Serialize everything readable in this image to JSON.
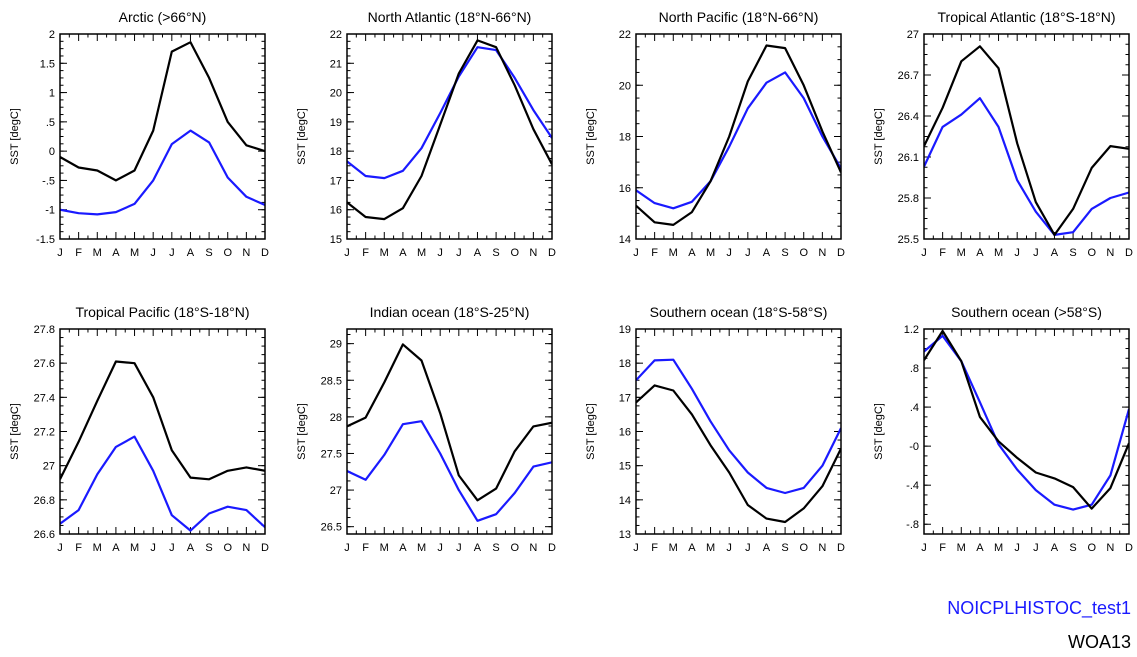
{
  "colors": {
    "model": "#1a1aff",
    "obs": "#000000"
  },
  "legend": {
    "model": "NOICPLHISTOC_test1",
    "obs": "WOA13"
  },
  "chart_data": [
    {
      "type": "line",
      "title": "Arctic (>66°N)",
      "ylabel": "SST [degC]",
      "x": [
        "J",
        "F",
        "M",
        "A",
        "M",
        "J",
        "J",
        "A",
        "S",
        "O",
        "N",
        "D"
      ],
      "ylim": [
        -1.5,
        2
      ],
      "yticks": [
        -1.5,
        -1,
        -0.5,
        0,
        0.5,
        1,
        1.5,
        2
      ],
      "yticklabels": [
        "-1.5",
        "-1",
        "-.5",
        "0",
        ".5",
        "1",
        "1.5",
        "2"
      ],
      "series": [
        {
          "name": "WOA13",
          "values": [
            -0.1,
            -0.28,
            -0.33,
            -0.5,
            -0.33,
            0.35,
            1.7,
            1.86,
            1.25,
            0.5,
            0.1,
            0.0
          ]
        },
        {
          "name": "NOICPLHISTOC_test1",
          "values": [
            -1.0,
            -1.06,
            -1.08,
            -1.04,
            -0.9,
            -0.5,
            0.12,
            0.35,
            0.15,
            -0.45,
            -0.78,
            -0.92
          ]
        }
      ]
    },
    {
      "type": "line",
      "title": "North Atlantic (18°N-66°N)",
      "ylabel": "SST [degC]",
      "x": [
        "J",
        "F",
        "M",
        "A",
        "M",
        "J",
        "J",
        "A",
        "S",
        "O",
        "N",
        "D"
      ],
      "ylim": [
        15,
        22
      ],
      "yticks": [
        15,
        16,
        17,
        18,
        19,
        20,
        21,
        22
      ],
      "yticklabels": [
        "15",
        "16",
        "17",
        "18",
        "19",
        "20",
        "21",
        "22"
      ],
      "series": [
        {
          "name": "WOA13",
          "values": [
            16.25,
            15.75,
            15.68,
            16.05,
            17.15,
            18.9,
            20.65,
            21.78,
            21.55,
            20.25,
            18.75,
            17.55
          ]
        },
        {
          "name": "NOICPLHISTOC_test1",
          "values": [
            17.65,
            17.15,
            17.08,
            17.33,
            18.1,
            19.3,
            20.55,
            21.55,
            21.45,
            20.5,
            19.4,
            18.45
          ]
        }
      ]
    },
    {
      "type": "line",
      "title": "North Pacific (18°N-66°N)",
      "ylabel": "SST [degC]",
      "x": [
        "J",
        "F",
        "M",
        "A",
        "M",
        "J",
        "J",
        "A",
        "S",
        "O",
        "N",
        "D"
      ],
      "ylim": [
        14,
        22
      ],
      "yticks": [
        14,
        16,
        18,
        20,
        22
      ],
      "yticklabels": [
        "14",
        "16",
        "18",
        "20",
        "22"
      ],
      "series": [
        {
          "name": "WOA13",
          "values": [
            15.3,
            14.65,
            14.55,
            15.05,
            16.25,
            18.0,
            20.15,
            21.55,
            21.45,
            20.0,
            18.2,
            16.6
          ]
        },
        {
          "name": "NOICPLHISTOC_test1",
          "values": [
            15.9,
            15.4,
            15.2,
            15.45,
            16.25,
            17.6,
            19.1,
            20.1,
            20.5,
            19.5,
            18.0,
            16.75
          ]
        }
      ]
    },
    {
      "type": "line",
      "title": "Tropical Atlantic (18°S-18°N)",
      "ylabel": "SST [degC]",
      "x": [
        "J",
        "F",
        "M",
        "A",
        "M",
        "J",
        "J",
        "A",
        "S",
        "O",
        "N",
        "D"
      ],
      "ylim": [
        25.5,
        27
      ],
      "yticks": [
        25.5,
        25.8,
        26.1,
        26.4,
        26.7,
        27
      ],
      "yticklabels": [
        "25.5",
        "25.8",
        "26.1",
        "26.4",
        "26.7",
        "27"
      ],
      "series": [
        {
          "name": "WOA13",
          "values": [
            26.18,
            26.46,
            26.8,
            26.91,
            26.75,
            26.2,
            25.77,
            25.53,
            25.72,
            26.02,
            26.18,
            26.16
          ]
        },
        {
          "name": "NOICPLHISTOC_test1",
          "values": [
            26.03,
            26.32,
            26.41,
            26.53,
            26.32,
            25.93,
            25.7,
            25.53,
            25.55,
            25.72,
            25.8,
            25.84
          ]
        }
      ]
    },
    {
      "type": "line",
      "title": "Tropical Pacific (18°S-18°N)",
      "ylabel": "SST [degC]",
      "x": [
        "J",
        "F",
        "M",
        "A",
        "M",
        "J",
        "J",
        "A",
        "S",
        "O",
        "N",
        "D"
      ],
      "ylim": [
        26.6,
        27.8
      ],
      "yticks": [
        26.6,
        26.8,
        27,
        27.2,
        27.4,
        27.6,
        27.8
      ],
      "yticklabels": [
        "26.6",
        "26.8",
        "27",
        "27.2",
        "27.4",
        "27.6",
        "27.8"
      ],
      "series": [
        {
          "name": "WOA13",
          "values": [
            26.92,
            27.14,
            27.38,
            27.61,
            27.6,
            27.4,
            27.09,
            26.93,
            26.92,
            26.97,
            26.99,
            26.97
          ]
        },
        {
          "name": "NOICPLHISTOC_test1",
          "values": [
            26.66,
            26.74,
            26.95,
            27.11,
            27.17,
            26.97,
            26.71,
            26.62,
            26.72,
            26.76,
            26.74,
            26.64
          ]
        }
      ]
    },
    {
      "type": "line",
      "title": "Indian ocean (18°S-25°N)",
      "ylabel": "SST [degC]",
      "x": [
        "J",
        "F",
        "M",
        "A",
        "M",
        "J",
        "J",
        "A",
        "S",
        "O",
        "N",
        "D"
      ],
      "ylim": [
        26.4,
        29.2
      ],
      "yticks": [
        26.5,
        27,
        27.5,
        28,
        28.5,
        29
      ],
      "yticklabels": [
        "26.5",
        "27",
        "27.5",
        "28",
        "28.5",
        "29"
      ],
      "series": [
        {
          "name": "WOA13",
          "values": [
            27.87,
            27.99,
            28.47,
            28.99,
            28.77,
            28.05,
            27.2,
            26.86,
            27.02,
            27.53,
            27.87,
            27.92
          ]
        },
        {
          "name": "NOICPLHISTOC_test1",
          "values": [
            27.26,
            27.14,
            27.48,
            27.9,
            27.94,
            27.5,
            27.0,
            26.58,
            26.67,
            26.96,
            27.32,
            27.38
          ]
        }
      ]
    },
    {
      "type": "line",
      "title": "Southern ocean (18°S-58°S)",
      "ylabel": "SST [degC]",
      "x": [
        "J",
        "F",
        "M",
        "A",
        "M",
        "J",
        "J",
        "A",
        "S",
        "O",
        "N",
        "D"
      ],
      "ylim": [
        13,
        19
      ],
      "yticks": [
        13,
        14,
        15,
        16,
        17,
        18,
        19
      ],
      "yticklabels": [
        "13",
        "14",
        "15",
        "16",
        "17",
        "18",
        "19"
      ],
      "series": [
        {
          "name": "WOA13",
          "values": [
            16.85,
            17.35,
            17.2,
            16.5,
            15.6,
            14.8,
            13.85,
            13.45,
            13.35,
            13.75,
            14.4,
            15.5
          ]
        },
        {
          "name": "NOICPLHISTOC_test1",
          "values": [
            17.5,
            18.08,
            18.1,
            17.25,
            16.3,
            15.45,
            14.8,
            14.35,
            14.2,
            14.35,
            15.0,
            16.1
          ]
        }
      ]
    },
    {
      "type": "line",
      "title": "Southern ocean (>58°S)",
      "ylabel": "SST [degC]",
      "x": [
        "J",
        "F",
        "M",
        "A",
        "M",
        "J",
        "J",
        "A",
        "S",
        "O",
        "N",
        "D"
      ],
      "ylim": [
        -0.9,
        1.2
      ],
      "yticks": [
        -0.8,
        -0.4,
        0,
        0.4,
        0.8,
        1.2
      ],
      "yticklabels": [
        "-.8",
        "-.4",
        "-0",
        ".4",
        ".8",
        "1.2"
      ],
      "series": [
        {
          "name": "WOA13",
          "values": [
            0.88,
            1.18,
            0.87,
            0.3,
            0.05,
            -0.12,
            -0.27,
            -0.33,
            -0.42,
            -0.64,
            -0.43,
            0.03
          ]
        },
        {
          "name": "NOICPLHISTOC_test1",
          "values": [
            0.97,
            1.13,
            0.87,
            0.45,
            0.02,
            -0.24,
            -0.45,
            -0.6,
            -0.65,
            -0.6,
            -0.3,
            0.38
          ]
        }
      ]
    }
  ]
}
